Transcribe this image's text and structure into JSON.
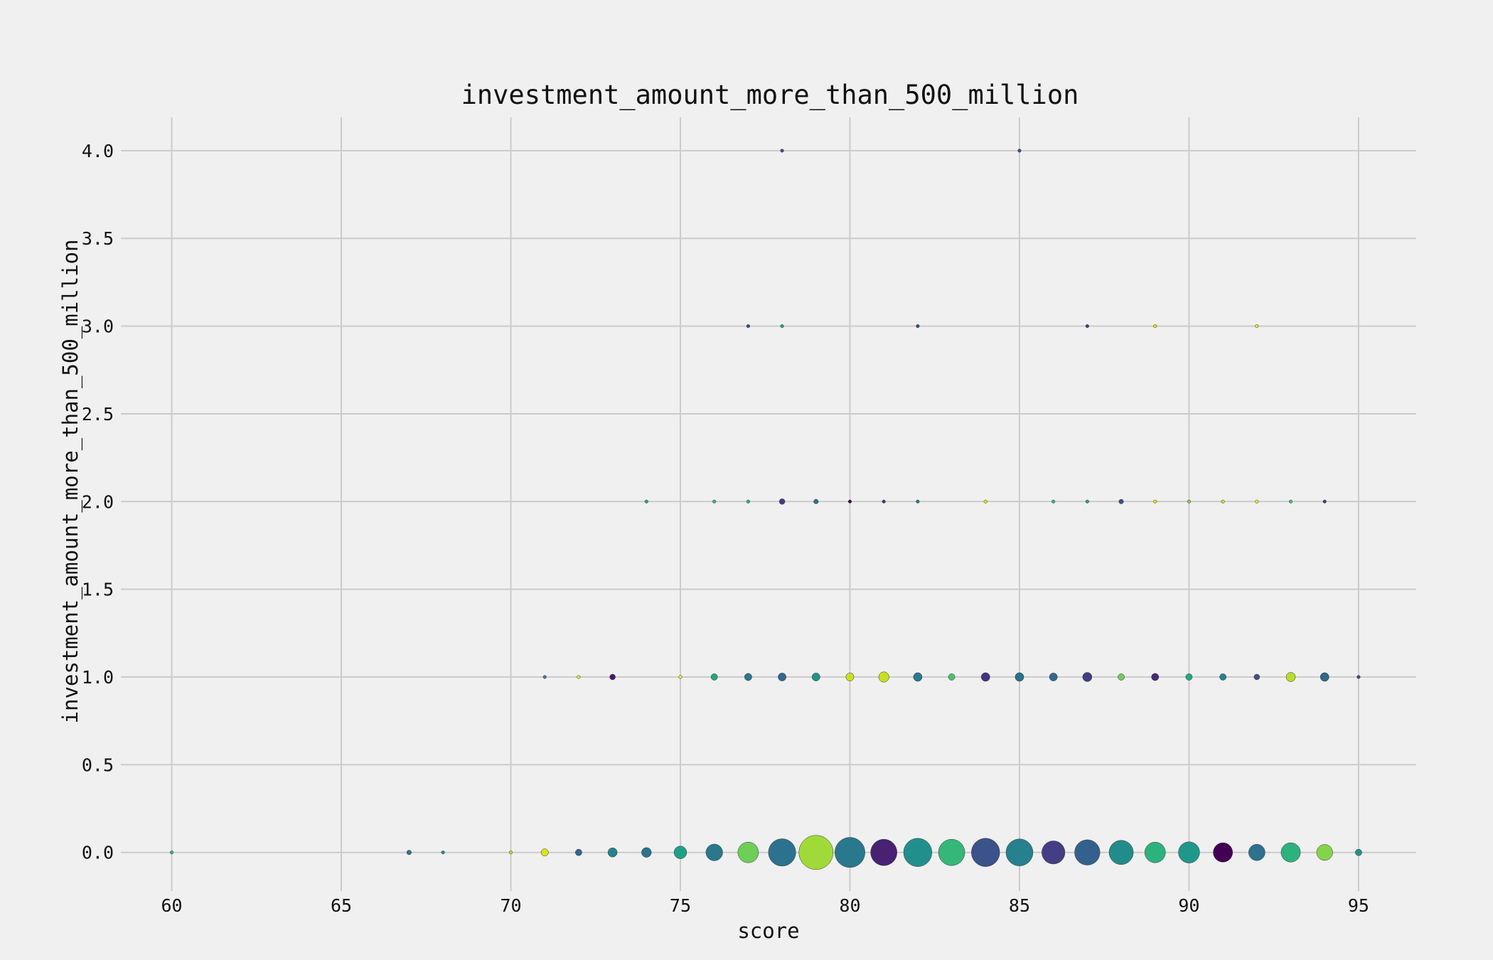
{
  "chart_data": {
    "type": "scatter",
    "title": "investment_amount_more_than_500_million",
    "xlabel": "score",
    "ylabel": "investment_amount_more_than_500_million",
    "xlim": [
      58.5,
      96.7
    ],
    "ylim": [
      -0.22,
      4.19
    ],
    "xticks": [
      "60",
      "65",
      "70",
      "75",
      "80",
      "85",
      "90",
      "95"
    ],
    "yticks": [
      "0.0",
      "0.5",
      "1.0",
      "1.5",
      "2.0",
      "2.5",
      "3.0",
      "3.5",
      "4.0"
    ],
    "grid": true,
    "legend": false,
    "colormap": "viridis",
    "note_size": "marker area proportional to count",
    "points": [
      {
        "x": 60,
        "y": 0,
        "count": 1,
        "color": "#35b779"
      },
      {
        "x": 67,
        "y": 0,
        "count": 2,
        "color": "#2a788e"
      },
      {
        "x": 68,
        "y": 0,
        "count": 1,
        "color": "#21908d"
      },
      {
        "x": 70,
        "y": 0,
        "count": 1,
        "color": "#bddf26"
      },
      {
        "x": 71,
        "y": 0,
        "count": 5,
        "color": "#dde318"
      },
      {
        "x": 72,
        "y": 0,
        "count": 4,
        "color": "#31688e"
      },
      {
        "x": 73,
        "y": 0,
        "count": 8,
        "color": "#26828e"
      },
      {
        "x": 74,
        "y": 0,
        "count": 9,
        "color": "#2c728e"
      },
      {
        "x": 75,
        "y": 0,
        "count": 15,
        "color": "#1fa187"
      },
      {
        "x": 76,
        "y": 0,
        "count": 26,
        "color": "#2a788e"
      },
      {
        "x": 77,
        "y": 0,
        "count": 40,
        "color": "#6ece58"
      },
      {
        "x": 78,
        "y": 0,
        "count": 70,
        "color": "#2c728e"
      },
      {
        "x": 79,
        "y": 0,
        "count": 110,
        "color": "#a0da39"
      },
      {
        "x": 80,
        "y": 0,
        "count": 85,
        "color": "#2a788e"
      },
      {
        "x": 81,
        "y": 0,
        "count": 65,
        "color": "#482173"
      },
      {
        "x": 82,
        "y": 0,
        "count": 75,
        "color": "#21908d"
      },
      {
        "x": 83,
        "y": 0,
        "count": 65,
        "color": "#35b779"
      },
      {
        "x": 84,
        "y": 0,
        "count": 75,
        "color": "#3b528b"
      },
      {
        "x": 85,
        "y": 0,
        "count": 68,
        "color": "#27808e"
      },
      {
        "x": 86,
        "y": 0,
        "count": 50,
        "color": "#433e85"
      },
      {
        "x": 87,
        "y": 0,
        "count": 60,
        "color": "#355f8d"
      },
      {
        "x": 88,
        "y": 0,
        "count": 55,
        "color": "#228c8d"
      },
      {
        "x": 89,
        "y": 0,
        "count": 40,
        "color": "#2db27d"
      },
      {
        "x": 90,
        "y": 0,
        "count": 42,
        "color": "#1f988b"
      },
      {
        "x": 91,
        "y": 0,
        "count": 35,
        "color": "#440154"
      },
      {
        "x": 92,
        "y": 0,
        "count": 25,
        "color": "#2c728e"
      },
      {
        "x": 93,
        "y": 0,
        "count": 35,
        "color": "#2db27d"
      },
      {
        "x": 94,
        "y": 0,
        "count": 24,
        "color": "#84d44b"
      },
      {
        "x": 95,
        "y": 0,
        "count": 4,
        "color": "#20928c"
      },
      {
        "x": 71,
        "y": 1,
        "count": 1,
        "color": "#3e74b8"
      },
      {
        "x": 72,
        "y": 1,
        "count": 1,
        "color": "#e6e419"
      },
      {
        "x": 73,
        "y": 1,
        "count": 3,
        "color": "#48186a"
      },
      {
        "x": 75,
        "y": 1,
        "count": 1,
        "color": "#fde725"
      },
      {
        "x": 76,
        "y": 1,
        "count": 4,
        "color": "#25a584"
      },
      {
        "x": 77,
        "y": 1,
        "count": 5,
        "color": "#2a788e"
      },
      {
        "x": 78,
        "y": 1,
        "count": 6,
        "color": "#31688e"
      },
      {
        "x": 79,
        "y": 1,
        "count": 6,
        "color": "#20928c"
      },
      {
        "x": 80,
        "y": 1,
        "count": 6,
        "color": "#c8e020"
      },
      {
        "x": 81,
        "y": 1,
        "count": 10,
        "color": "#c8e020"
      },
      {
        "x": 82,
        "y": 1,
        "count": 7,
        "color": "#2a788e"
      },
      {
        "x": 83,
        "y": 1,
        "count": 4,
        "color": "#4ac16d"
      },
      {
        "x": 84,
        "y": 1,
        "count": 7,
        "color": "#46337f"
      },
      {
        "x": 85,
        "y": 1,
        "count": 7,
        "color": "#2c728e"
      },
      {
        "x": 86,
        "y": 1,
        "count": 6,
        "color": "#31688e"
      },
      {
        "x": 87,
        "y": 1,
        "count": 8,
        "color": "#433e85"
      },
      {
        "x": 88,
        "y": 1,
        "count": 4,
        "color": "#6ece58"
      },
      {
        "x": 89,
        "y": 1,
        "count": 5,
        "color": "#482878"
      },
      {
        "x": 90,
        "y": 1,
        "count": 4,
        "color": "#22a884"
      },
      {
        "x": 91,
        "y": 1,
        "count": 4,
        "color": "#26828e"
      },
      {
        "x": 92,
        "y": 1,
        "count": 3,
        "color": "#3b528b"
      },
      {
        "x": 93,
        "y": 1,
        "count": 8,
        "color": "#b5de2b"
      },
      {
        "x": 94,
        "y": 1,
        "count": 7,
        "color": "#31688e"
      },
      {
        "x": 95,
        "y": 1,
        "count": 1,
        "color": "#3e4989"
      },
      {
        "x": 74,
        "y": 2,
        "count": 1,
        "color": "#22a884"
      },
      {
        "x": 76,
        "y": 2,
        "count": 1,
        "color": "#35b779"
      },
      {
        "x": 77,
        "y": 2,
        "count": 1,
        "color": "#2db27d"
      },
      {
        "x": 78,
        "y": 2,
        "count": 3,
        "color": "#433e85"
      },
      {
        "x": 79,
        "y": 2,
        "count": 2,
        "color": "#2c728e"
      },
      {
        "x": 80,
        "y": 2,
        "count": 1,
        "color": "#440154"
      },
      {
        "x": 81,
        "y": 2,
        "count": 1,
        "color": "#46337f"
      },
      {
        "x": 82,
        "y": 2,
        "count": 1,
        "color": "#2a788e"
      },
      {
        "x": 84,
        "y": 2,
        "count": 1,
        "color": "#e3e419"
      },
      {
        "x": 86,
        "y": 2,
        "count": 1,
        "color": "#35b779"
      },
      {
        "x": 87,
        "y": 2,
        "count": 1,
        "color": "#20a386"
      },
      {
        "x": 88,
        "y": 2,
        "count": 2,
        "color": "#3b528b"
      },
      {
        "x": 89,
        "y": 2,
        "count": 1,
        "color": "#e3e419"
      },
      {
        "x": 90,
        "y": 2,
        "count": 1,
        "color": "#84d44b"
      },
      {
        "x": 91,
        "y": 2,
        "count": 1,
        "color": "#d0e11c"
      },
      {
        "x": 92,
        "y": 2,
        "count": 1,
        "color": "#f1e51d"
      },
      {
        "x": 93,
        "y": 2,
        "count": 1,
        "color": "#4ac16d"
      },
      {
        "x": 94,
        "y": 2,
        "count": 1,
        "color": "#433e85"
      },
      {
        "x": 77,
        "y": 3,
        "count": 1,
        "color": "#3e4989"
      },
      {
        "x": 78,
        "y": 3,
        "count": 1,
        "color": "#1fa187"
      },
      {
        "x": 82,
        "y": 3,
        "count": 1,
        "color": "#3e4989"
      },
      {
        "x": 87,
        "y": 3,
        "count": 1,
        "color": "#433e85"
      },
      {
        "x": 89,
        "y": 3,
        "count": 1,
        "color": "#e3e419"
      },
      {
        "x": 92,
        "y": 3,
        "count": 1,
        "color": "#f1e51d"
      },
      {
        "x": 78,
        "y": 4,
        "count": 1,
        "color": "#3b528b"
      },
      {
        "x": 85,
        "y": 4,
        "count": 1,
        "color": "#3e4989"
      }
    ]
  }
}
